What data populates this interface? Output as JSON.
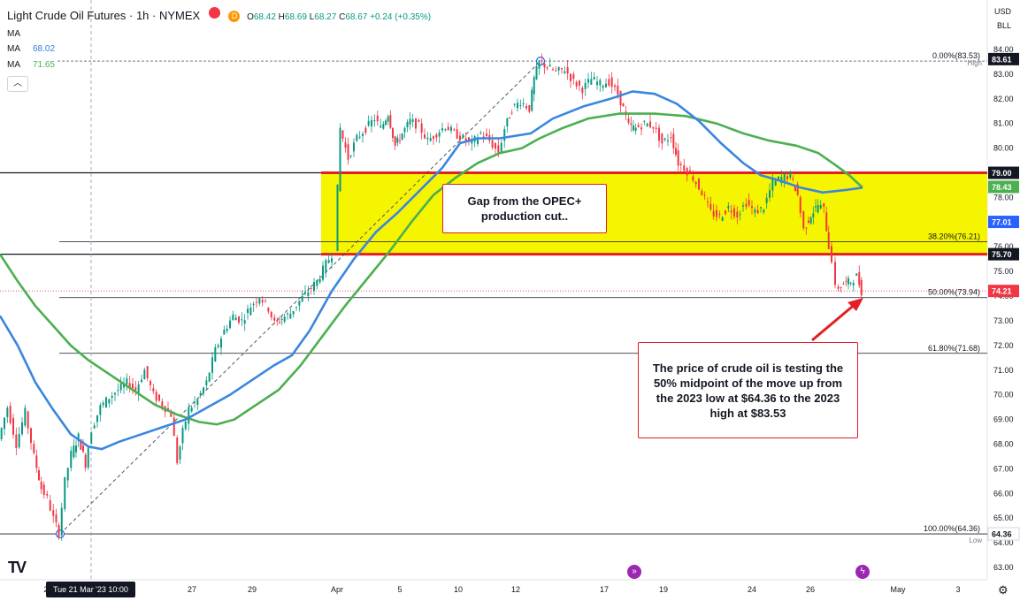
{
  "header": {
    "title": "Light Crude Oil Futures · 1h · NYMEX",
    "open_label": "O",
    "open": "68.42",
    "high_label": "H",
    "high": "68.69",
    "low_label": "L",
    "low": "68.27",
    "close_label": "C",
    "close": "68.67",
    "change": "+0.24 (+0.35%)",
    "badge_red": "",
    "badge_orange": "D"
  },
  "indicators": [
    {
      "label": "MA",
      "value": "",
      "color": "#131722"
    },
    {
      "label": "MA",
      "value": "68.02",
      "color": "#2f7fe3"
    },
    {
      "label": "MA",
      "value": "71.65",
      "color": "#4caf50"
    }
  ],
  "collapse_icon": "chevron-up-icon",
  "currency": "USD",
  "unit": "BLL",
  "annotations": {
    "gap_text": "Gap from the OPEC+ production cut..",
    "mid_text": "The price of crude oil is testing the 50% midpoint of the move up from the 2023 low at $64.36 to the 2023 high at $83.53"
  },
  "footer": {
    "date_badge": "Tue 21 Mar '23   10:00",
    "logo": "TV"
  },
  "colors": {
    "up": "#089981",
    "down": "#f23645",
    "gap_fill": "#f5f500",
    "gap_border": "#e31e24",
    "ma_blue": "#3a86e0",
    "ma_green": "#4caf50",
    "price_tag": "#f23645"
  },
  "chart_data": {
    "type": "candlestick",
    "y_axis_ticks": [
      "84.00",
      "83.00",
      "82.00",
      "81.00",
      "80.00",
      "79.00",
      "78.00",
      "77.00",
      "76.00",
      "75.00",
      "74.00",
      "73.00",
      "72.00",
      "71.00",
      "70.00",
      "69.00",
      "68.00",
      "67.00",
      "66.00",
      "65.00",
      "64.00",
      "63.00"
    ],
    "ylim": [
      62.9,
      84.5
    ],
    "x_axis_ticks": [
      "2",
      "27",
      "29",
      "Apr",
      "5",
      "10",
      "12",
      "17",
      "19",
      "24",
      "26",
      "May",
      "3"
    ],
    "fib_levels": [
      {
        "label": "0.00%(83.53)",
        "value": 83.53
      },
      {
        "label": "38.20%(76.21)",
        "value": 76.21
      },
      {
        "label": "50.00%(73.94)",
        "value": 73.94
      },
      {
        "label": "61.80%(71.68)",
        "value": 71.68
      },
      {
        "label": "100.00%(64.36)",
        "value": 64.36
      }
    ],
    "horizontal_lines": [
      {
        "value": 79.0,
        "color": "#131722"
      },
      {
        "value": 75.7,
        "color": "#131722"
      }
    ],
    "gap_zone": {
      "top": 79.0,
      "bottom": 75.7
    },
    "price_tags": [
      {
        "label": "83.61",
        "value": 83.61,
        "bg": "#131722"
      },
      {
        "label": "79.00",
        "value": 79.0,
        "bg": "#131722"
      },
      {
        "label": "78.43",
        "value": 78.43,
        "bg": "#4caf50"
      },
      {
        "label": "77.01",
        "value": 77.01,
        "bg": "#2962ff"
      },
      {
        "label": "75.70",
        "value": 75.7,
        "bg": "#131722"
      },
      {
        "label": "74.21",
        "value": 74.21,
        "bg": "#f23645"
      },
      {
        "label": "64.36",
        "value": 64.36,
        "bg": "#ffffff"
      }
    ],
    "high_label": "High",
    "low_label": "Low",
    "current_price": 74.21,
    "swing_low": 64.36,
    "swing_high": 83.53,
    "price_path": [
      [
        0,
        68.2
      ],
      [
        10,
        69.5
      ],
      [
        20,
        68.0
      ],
      [
        30,
        69.3
      ],
      [
        40,
        67.5
      ],
      [
        48,
        66.2
      ],
      [
        55,
        65.8
      ],
      [
        62,
        65.0
      ],
      [
        68,
        64.4
      ],
      [
        75,
        66.5
      ],
      [
        82,
        67.6
      ],
      [
        90,
        68.3
      ],
      [
        98,
        67.2
      ],
      [
        105,
        68.6
      ],
      [
        115,
        69.5
      ],
      [
        125,
        69.9
      ],
      [
        135,
        70.2
      ],
      [
        145,
        70.5
      ],
      [
        155,
        70.2
      ],
      [
        165,
        71.0
      ],
      [
        175,
        70.0
      ],
      [
        185,
        69.6
      ],
      [
        195,
        69.2
      ],
      [
        202,
        67.3
      ],
      [
        208,
        68.5
      ],
      [
        215,
        69.4
      ],
      [
        225,
        69.8
      ],
      [
        235,
        70.5
      ],
      [
        245,
        71.8
      ],
      [
        255,
        72.6
      ],
      [
        265,
        73.2
      ],
      [
        275,
        73.0
      ],
      [
        285,
        73.6
      ],
      [
        295,
        74.0
      ],
      [
        305,
        73.5
      ],
      [
        312,
        72.9
      ],
      [
        320,
        73.1
      ],
      [
        330,
        73.3
      ],
      [
        340,
        73.8
      ],
      [
        350,
        74.2
      ],
      [
        360,
        74.6
      ],
      [
        370,
        75.3
      ],
      [
        380,
        75.9
      ],
      [
        386,
        80.8
      ],
      [
        395,
        79.6
      ],
      [
        405,
        80.4
      ],
      [
        415,
        80.8
      ],
      [
        425,
        81.2
      ],
      [
        432,
        80.8
      ],
      [
        440,
        81.4
      ],
      [
        448,
        80.1
      ],
      [
        456,
        80.6
      ],
      [
        465,
        81.1
      ],
      [
        475,
        80.9
      ],
      [
        485,
        80.3
      ],
      [
        495,
        80.6
      ],
      [
        505,
        80.9
      ],
      [
        515,
        80.6
      ],
      [
        525,
        80.4
      ],
      [
        535,
        80.2
      ],
      [
        545,
        80.6
      ],
      [
        555,
        80.3
      ],
      [
        565,
        79.8
      ],
      [
        572,
        80.8
      ],
      [
        580,
        81.6
      ],
      [
        590,
        81.9
      ],
      [
        600,
        81.6
      ],
      [
        605,
        82.8
      ],
      [
        611,
        83.5
      ],
      [
        620,
        83.3
      ],
      [
        630,
        83.1
      ],
      [
        640,
        83.2
      ],
      [
        650,
        82.7
      ],
      [
        660,
        82.4
      ],
      [
        670,
        82.8
      ],
      [
        680,
        82.6
      ],
      [
        690,
        82.7
      ],
      [
        700,
        82.2
      ],
      [
        706,
        81.6
      ],
      [
        712,
        80.9
      ],
      [
        720,
        80.8
      ],
      [
        730,
        81.0
      ],
      [
        740,
        80.9
      ],
      [
        750,
        80.2
      ],
      [
        760,
        80.5
      ],
      [
        768,
        79.4
      ],
      [
        775,
        79.2
      ],
      [
        785,
        78.8
      ],
      [
        795,
        78.2
      ],
      [
        805,
        77.4
      ],
      [
        815,
        77.2
      ],
      [
        825,
        77.6
      ],
      [
        835,
        77.3
      ],
      [
        845,
        77.8
      ],
      [
        855,
        77.4
      ],
      [
        865,
        77.6
      ],
      [
        875,
        78.6
      ],
      [
        885,
        78.8
      ],
      [
        895,
        78.9
      ],
      [
        903,
        78.1
      ],
      [
        910,
        76.7
      ],
      [
        918,
        77.3
      ],
      [
        926,
        77.7
      ],
      [
        933,
        77.5
      ],
      [
        938,
        76.0
      ],
      [
        942,
        75.5
      ],
      [
        946,
        74.3
      ],
      [
        955,
        74.5
      ],
      [
        963,
        74.6
      ],
      [
        970,
        74.8
      ],
      [
        975,
        74.2
      ]
    ],
    "ma_blue_path": [
      [
        0,
        73.2
      ],
      [
        20,
        72.0
      ],
      [
        40,
        70.5
      ],
      [
        60,
        69.4
      ],
      [
        80,
        68.4
      ],
      [
        100,
        67.9
      ],
      [
        115,
        67.8
      ],
      [
        135,
        68.1
      ],
      [
        160,
        68.4
      ],
      [
        185,
        68.7
      ],
      [
        210,
        69.0
      ],
      [
        235,
        69.5
      ],
      [
        260,
        70.0
      ],
      [
        285,
        70.6
      ],
      [
        310,
        71.2
      ],
      [
        330,
        71.6
      ],
      [
        350,
        72.6
      ],
      [
        375,
        74.2
      ],
      [
        400,
        75.5
      ],
      [
        425,
        76.6
      ],
      [
        450,
        77.4
      ],
      [
        475,
        78.3
      ],
      [
        500,
        79.2
      ],
      [
        520,
        80.2
      ],
      [
        540,
        80.4
      ],
      [
        565,
        80.4
      ],
      [
        600,
        80.6
      ],
      [
        625,
        81.2
      ],
      [
        660,
        81.7
      ],
      [
        690,
        82.0
      ],
      [
        715,
        82.3
      ],
      [
        740,
        82.2
      ],
      [
        765,
        81.8
      ],
      [
        790,
        81.1
      ],
      [
        815,
        80.2
      ],
      [
        840,
        79.4
      ],
      [
        860,
        78.9
      ],
      [
        880,
        78.7
      ],
      [
        905,
        78.4
      ],
      [
        930,
        78.2
      ],
      [
        955,
        78.3
      ],
      [
        975,
        78.4
      ]
    ],
    "ma_green_path": [
      [
        0,
        75.7
      ],
      [
        20,
        74.6
      ],
      [
        40,
        73.6
      ],
      [
        60,
        72.8
      ],
      [
        80,
        72.0
      ],
      [
        100,
        71.4
      ],
      [
        125,
        70.8
      ],
      [
        150,
        70.2
      ],
      [
        175,
        69.6
      ],
      [
        200,
        69.2
      ],
      [
        225,
        68.9
      ],
      [
        245,
        68.8
      ],
      [
        265,
        69.0
      ],
      [
        290,
        69.6
      ],
      [
        315,
        70.2
      ],
      [
        340,
        71.2
      ],
      [
        365,
        72.4
      ],
      [
        390,
        73.6
      ],
      [
        415,
        74.7
      ],
      [
        440,
        75.8
      ],
      [
        465,
        77.0
      ],
      [
        490,
        78.1
      ],
      [
        515,
        78.8
      ],
      [
        540,
        79.4
      ],
      [
        565,
        79.8
      ],
      [
        590,
        80.0
      ],
      [
        610,
        80.4
      ],
      [
        635,
        80.8
      ],
      [
        665,
        81.2
      ],
      [
        700,
        81.4
      ],
      [
        740,
        81.4
      ],
      [
        775,
        81.3
      ],
      [
        810,
        81.0
      ],
      [
        840,
        80.6
      ],
      [
        870,
        80.3
      ],
      [
        900,
        80.1
      ],
      [
        925,
        79.8
      ],
      [
        945,
        79.3
      ],
      [
        960,
        78.9
      ],
      [
        975,
        78.4
      ]
    ]
  }
}
